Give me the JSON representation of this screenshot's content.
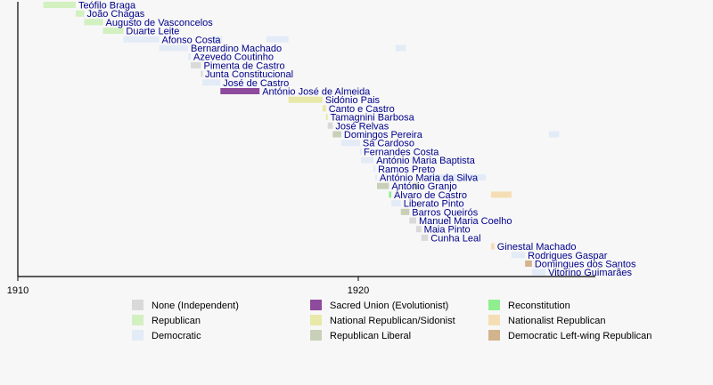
{
  "chart_data": {
    "type": "timeline",
    "title": "",
    "xlabel": "",
    "ylabel": "",
    "xlim": [
      1910,
      1926
    ],
    "ticks": [
      {
        "year": 1910,
        "label": "1910"
      },
      {
        "year": 1920,
        "label": "1920"
      }
    ],
    "parties": [
      {
        "id": "none",
        "name": "None (Independent)",
        "color": "#d9d9d9"
      },
      {
        "id": "republican",
        "name": "Republican",
        "color": "#d2f0c0"
      },
      {
        "id": "democratic",
        "name": "Democratic",
        "color": "#e3ebf7"
      },
      {
        "id": "sacred",
        "name": "Sacred Union (Evolutionist)",
        "color": "#8e4a9d"
      },
      {
        "id": "natrep",
        "name": "National Republican/Sidonist",
        "color": "#e8e8a8"
      },
      {
        "id": "replib",
        "name": "Republican Liberal",
        "color": "#c8d0b8"
      },
      {
        "id": "recon",
        "name": "Reconstitution",
        "color": "#90ee90"
      },
      {
        "id": "nationalist",
        "name": "Nationalist Republican",
        "color": "#f5deb3"
      },
      {
        "id": "dlwr",
        "name": "Democratic Left-wing Republican",
        "color": "#d2b48c"
      }
    ],
    "entries": [
      {
        "name": "Teófilo Braga",
        "start": 1910.75,
        "end": 1911.7,
        "party": "republican"
      },
      {
        "name": "João Chagas",
        "start": 1911.7,
        "end": 1911.95,
        "party": "republican"
      },
      {
        "name": "Augusto de Vasconcelos",
        "start": 1911.95,
        "end": 1912.5,
        "party": "republican"
      },
      {
        "name": "Duarte Leite",
        "start": 1912.5,
        "end": 1913.1,
        "party": "republican"
      },
      {
        "name": "Afonso Costa",
        "start": 1913.1,
        "end": 1914.15,
        "party": "democratic"
      },
      {
        "name": "Bernardino Machado",
        "start": 1914.15,
        "end": 1915.0,
        "party": "democratic"
      },
      {
        "name": "Azevedo Coutinho",
        "start": 1915.0,
        "end": 1915.08,
        "party": "democratic"
      },
      {
        "name": "Pimenta de Castro",
        "start": 1915.08,
        "end": 1915.38,
        "party": "none"
      },
      {
        "name": "Junta Constitucional",
        "start": 1915.38,
        "end": 1915.42,
        "party": "none"
      },
      {
        "name": "José de Castro",
        "start": 1915.42,
        "end": 1915.95,
        "party": "democratic"
      },
      {
        "name": "António José de Almeida",
        "start": 1915.95,
        "end": 1917.1,
        "party": "sacred"
      },
      {
        "name": "Sidónio Pais",
        "start": 1917.95,
        "end": 1918.95,
        "party": "natrep"
      },
      {
        "name": "Canto e Castro",
        "start": 1918.95,
        "end": 1919.05,
        "party": "natrep"
      },
      {
        "name": "Tamagnini Barbosa",
        "start": 1919.05,
        "end": 1919.1,
        "party": "natrep"
      },
      {
        "name": "José Relvas",
        "start": 1919.1,
        "end": 1919.25,
        "party": "none"
      },
      {
        "name": "Domingos Pereira",
        "start": 1919.25,
        "end": 1919.5,
        "party": "replib"
      },
      {
        "name": "Sá Cardoso",
        "start": 1919.5,
        "end": 1920.05,
        "party": "democratic"
      },
      {
        "name": "Fernandes Costa",
        "start": 1920.05,
        "end": 1920.08,
        "party": "democratic"
      },
      {
        "name": "António Maria Baptista",
        "start": 1920.08,
        "end": 1920.45,
        "party": "democratic"
      },
      {
        "name": "Ramos Preto",
        "start": 1920.45,
        "end": 1920.5,
        "party": "democratic"
      },
      {
        "name": "António Maria da Silva",
        "start": 1920.5,
        "end": 1920.55,
        "party": "democratic"
      },
      {
        "name": "António Granjo",
        "start": 1920.55,
        "end": 1920.9,
        "party": "replib"
      },
      {
        "name": "Álvaro de Castro",
        "start": 1920.9,
        "end": 1920.97,
        "party": "recon"
      },
      {
        "name": "Liberato Pinto",
        "start": 1920.97,
        "end": 1921.25,
        "party": "democratic"
      },
      {
        "name": "Barros Queirós",
        "start": 1921.25,
        "end": 1921.5,
        "party": "replib"
      },
      {
        "name": "Manuel Maria Coelho",
        "start": 1921.5,
        "end": 1921.7,
        "party": "none"
      },
      {
        "name": "Maia Pinto",
        "start": 1921.7,
        "end": 1921.85,
        "party": "none"
      },
      {
        "name": "Cunha Leal",
        "start": 1921.85,
        "end": 1922.05,
        "party": "none"
      },
      {
        "name": "Ginestal Machado",
        "start": 1923.9,
        "end": 1924.0,
        "party": "nationalist"
      },
      {
        "name": "Rodrigues Gaspar",
        "start": 1924.5,
        "end": 1924.9,
        "party": "democratic"
      },
      {
        "name": "Domingues dos Santos",
        "start": 1924.9,
        "end": 1925.1,
        "party": "dlwr"
      },
      {
        "name": "Vitorino Guimarães",
        "start": 1925.1,
        "end": 1925.5,
        "party": "democratic"
      }
    ],
    "repeat_entries": [
      {
        "name": "Afonso Costa",
        "start": 1915.7,
        "end": 1916.0,
        "party": "democratic"
      },
      {
        "name": "Afonso Costa",
        "start": 1917.3,
        "end": 1917.95,
        "party": "democratic"
      },
      {
        "name": "Bernardino Machado",
        "start": 1921.1,
        "end": 1921.4,
        "party": "democratic"
      },
      {
        "name": "Domingos Pereira",
        "start": 1925.6,
        "end": 1925.9,
        "party": "democratic"
      },
      {
        "name": "António Maria da Silva",
        "start": 1922.05,
        "end": 1923.75,
        "party": "democratic"
      },
      {
        "name": "António Granjo",
        "start": 1921.6,
        "end": 1921.75,
        "party": "replib"
      },
      {
        "name": "Álvaro de Castro",
        "start": 1923.9,
        "end": 1924.5,
        "party": "nationalist"
      }
    ],
    "legend_position": "bottom"
  }
}
